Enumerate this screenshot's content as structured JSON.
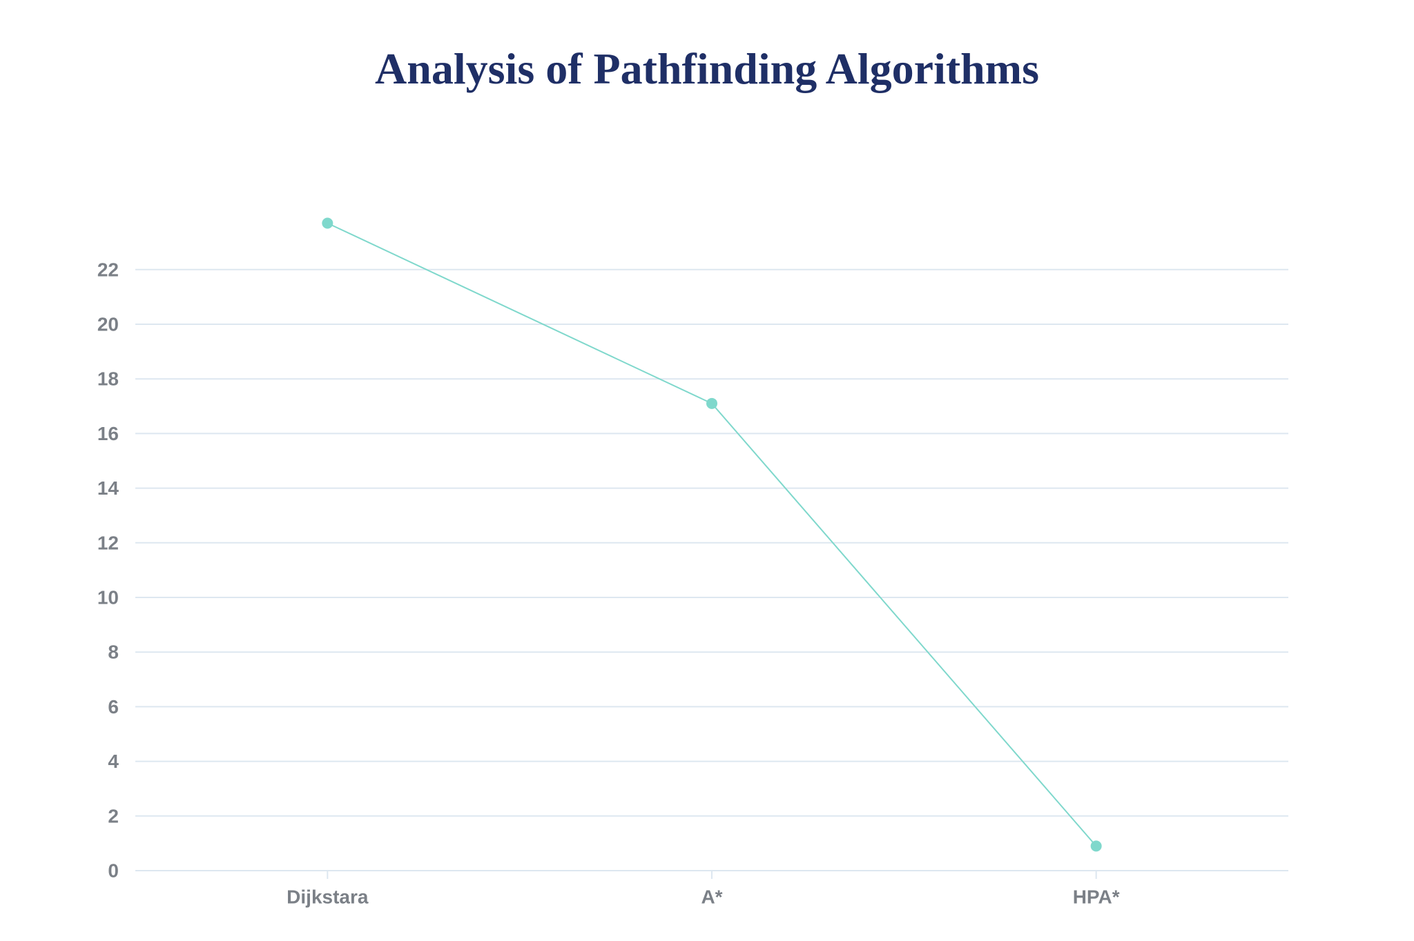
{
  "chart_data": {
    "type": "line",
    "title": "Analysis of Pathfinding Algorithms",
    "xlabel": "",
    "ylabel": "",
    "categories": [
      "Dijkstara",
      "A*",
      "HPA*"
    ],
    "series": [
      {
        "values": [
          23.7,
          17.1,
          0.9
        ]
      }
    ],
    "ylim": [
      0,
      22
    ],
    "yticks": [
      0,
      2,
      4,
      6,
      8,
      10,
      12,
      14,
      16,
      18,
      20,
      22
    ],
    "grid": true,
    "legend": "none"
  },
  "colors": {
    "title": "#1f2f66",
    "line": "#7fd8cc",
    "point": "#7fd8cc",
    "grid": "#dde7f0",
    "tick_label": "#7b8087"
  }
}
